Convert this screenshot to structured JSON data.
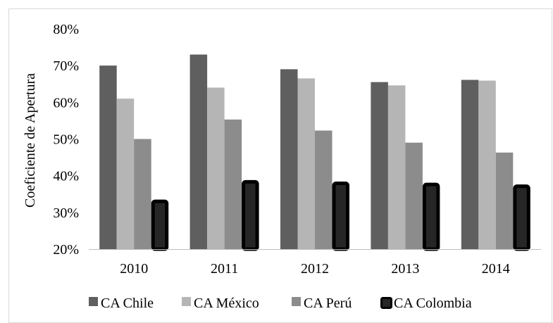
{
  "chart_data": {
    "type": "bar",
    "categories": [
      "2010",
      "2011",
      "2012",
      "2013",
      "2014"
    ],
    "series": [
      {
        "name": "CA Chile",
        "values": [
          0.7,
          0.73,
          0.69,
          0.655,
          0.661
        ],
        "color": "#5f5f5f"
      },
      {
        "name": "CA México",
        "values": [
          0.61,
          0.64,
          0.665,
          0.646,
          0.659
        ],
        "color": "#b5b5b5"
      },
      {
        "name": "CA Perú",
        "values": [
          0.5,
          0.553,
          0.523,
          0.49,
          0.463
        ],
        "color": "#8c8c8c"
      },
      {
        "name": "CA Colombia",
        "values": [
          0.335,
          0.388,
          0.384,
          0.381,
          0.376
        ],
        "color": "#262626",
        "border_color": "#000000"
      }
    ],
    "ylabel": "Coeficiente de Apertura",
    "xlabel": "",
    "title": "",
    "ylim": [
      0.2,
      0.8
    ],
    "yticks": [
      "20%",
      "30%",
      "40%",
      "50%",
      "60%",
      "70%",
      "80%"
    ],
    "ytick_values": [
      0.2,
      0.3,
      0.4,
      0.5,
      0.6,
      0.7,
      0.8
    ],
    "grid": false,
    "legend_position": "bottom"
  }
}
